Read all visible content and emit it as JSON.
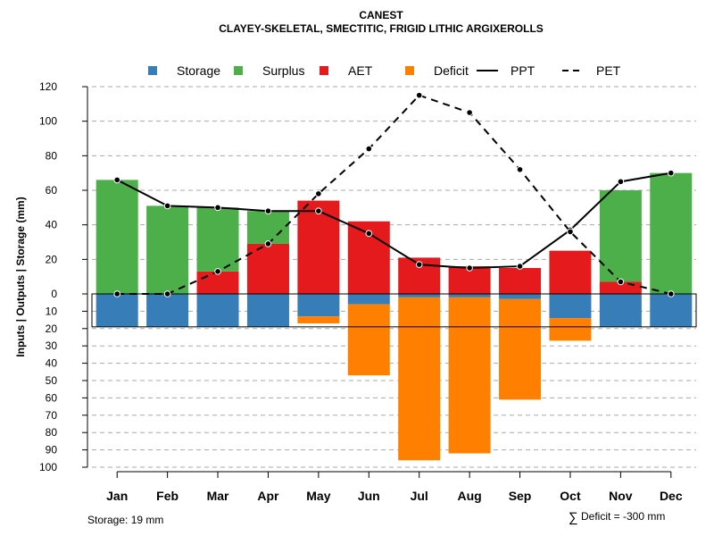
{
  "chart_data": {
    "type": "bar",
    "title": "CANEST",
    "subtitle": "CLAYEY-SKELETAL, SMECTITIC, FRIGID LITHIC ARGIXEROLLS",
    "ylabel": "Inputs | Outputs | Storage    (mm)",
    "categories": [
      "Jan",
      "Feb",
      "Mar",
      "Apr",
      "May",
      "Jun",
      "Jul",
      "Aug",
      "Sep",
      "Oct",
      "Nov",
      "Dec"
    ],
    "upper_ylim": [
      0,
      120
    ],
    "upper_ticks": [
      "0",
      "20",
      "40",
      "60",
      "80",
      "100",
      "120"
    ],
    "lower_ylim": [
      0,
      100
    ],
    "lower_ticks": [
      "0",
      "10",
      "20",
      "30",
      "40",
      "50",
      "60",
      "70",
      "80",
      "90",
      "100"
    ],
    "series": [
      {
        "name": "AET",
        "color": "#e41a1c",
        "values": [
          0,
          0,
          13,
          29,
          54,
          42,
          21,
          16,
          15,
          25,
          7,
          0
        ]
      },
      {
        "name": "Surplus",
        "color": "#4daf4a",
        "values": [
          66,
          51,
          37,
          19,
          0,
          0,
          0,
          0,
          0,
          0,
          53,
          70
        ]
      },
      {
        "name": "Storage",
        "color": "#377eb8",
        "values": [
          19,
          19,
          19,
          19,
          13,
          6,
          2,
          2,
          3,
          14,
          19,
          19
        ]
      },
      {
        "name": "Deficit",
        "color": "#ff7f00",
        "values": [
          0,
          0,
          0,
          0,
          4,
          41,
          94,
          90,
          58,
          13,
          0,
          0
        ]
      },
      {
        "name": "PPT",
        "style": "solid",
        "values": [
          66,
          51,
          50,
          48,
          48,
          35,
          17,
          15,
          16,
          37,
          65,
          70
        ]
      },
      {
        "name": "PET",
        "style": "dashed",
        "values": [
          0,
          0,
          13,
          29,
          58,
          84,
          115,
          105,
          72,
          36,
          7,
          0
        ]
      }
    ],
    "legend": {
      "position": "top",
      "items": [
        {
          "label": "Storage",
          "kind": "box",
          "color": "#377eb8"
        },
        {
          "label": "Surplus",
          "kind": "box",
          "color": "#4daf4a"
        },
        {
          "label": "AET",
          "kind": "box",
          "color": "#e41a1c"
        },
        {
          "label": "Deficit",
          "kind": "box",
          "color": "#ff7f00"
        },
        {
          "label": "PPT",
          "kind": "solid-line",
          "color": "#000000"
        },
        {
          "label": "PET",
          "kind": "dashed-line",
          "color": "#000000"
        }
      ]
    },
    "storage_capacity": 19,
    "annotations": {
      "storage_note": "Storage: 19 mm",
      "deficit_symbol": "∑",
      "deficit_note": "Deficit = -300 mm"
    },
    "grid": true
  }
}
